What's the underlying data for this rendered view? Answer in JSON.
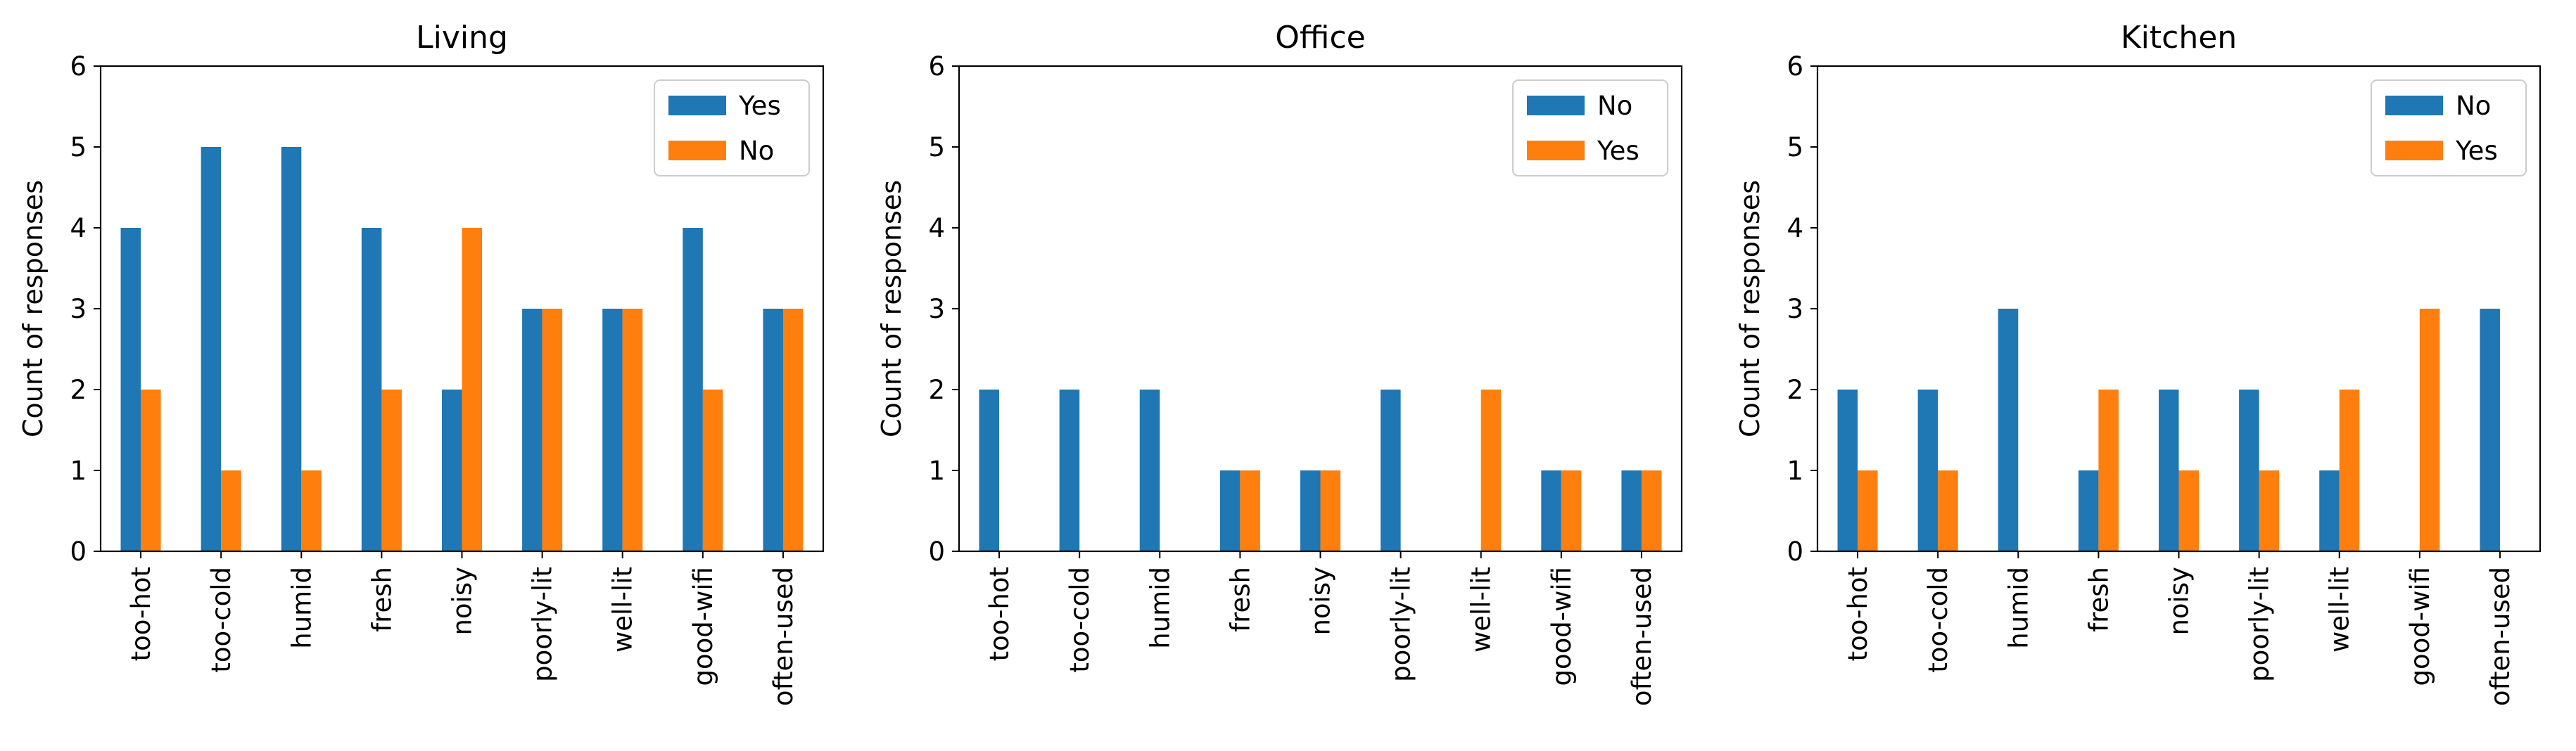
{
  "colors": {
    "blue": "#1f77b4",
    "orange": "#ff7f0e"
  },
  "chart_data": [
    {
      "type": "bar",
      "title": "Living",
      "ylabel": "Count of responses",
      "xlabel": "",
      "ylim": [
        0,
        6
      ],
      "yticks": [
        "0",
        "1",
        "2",
        "3",
        "4",
        "5",
        "6"
      ],
      "grid": false,
      "legend_position": "top-right",
      "categories": [
        "too-hot",
        "too-cold",
        "humid",
        "fresh",
        "noisy",
        "poorly-lit",
        "well-lit",
        "good-wifi",
        "often-used"
      ],
      "series": [
        {
          "name": "Yes",
          "color": "#1f77b4",
          "values": [
            4,
            5,
            5,
            4,
            2,
            3,
            3,
            4,
            3
          ]
        },
        {
          "name": "No",
          "color": "#ff7f0e",
          "values": [
            2,
            1,
            1,
            2,
            4,
            3,
            3,
            2,
            3
          ]
        }
      ]
    },
    {
      "type": "bar",
      "title": "Office",
      "ylabel": "Count of responses",
      "xlabel": "",
      "ylim": [
        0,
        6
      ],
      "yticks": [
        "0",
        "1",
        "2",
        "3",
        "4",
        "5",
        "6"
      ],
      "grid": false,
      "legend_position": "top-right",
      "categories": [
        "too-hot",
        "too-cold",
        "humid",
        "fresh",
        "noisy",
        "poorly-lit",
        "well-lit",
        "good-wifi",
        "often-used"
      ],
      "series": [
        {
          "name": "No",
          "color": "#1f77b4",
          "values": [
            2,
            2,
            2,
            1,
            1,
            2,
            0,
            1,
            1
          ]
        },
        {
          "name": "Yes",
          "color": "#ff7f0e",
          "values": [
            0,
            0,
            0,
            1,
            1,
            0,
            2,
            1,
            1
          ]
        }
      ]
    },
    {
      "type": "bar",
      "title": "Kitchen",
      "ylabel": "Count of responses",
      "xlabel": "",
      "ylim": [
        0,
        6
      ],
      "yticks": [
        "0",
        "1",
        "2",
        "3",
        "4",
        "5",
        "6"
      ],
      "grid": false,
      "legend_position": "top-right",
      "categories": [
        "too-hot",
        "too-cold",
        "humid",
        "fresh",
        "noisy",
        "poorly-lit",
        "well-lit",
        "good-wifi",
        "often-used"
      ],
      "series": [
        {
          "name": "No",
          "color": "#1f77b4",
          "values": [
            2,
            2,
            3,
            1,
            2,
            2,
            1,
            0,
            3
          ]
        },
        {
          "name": "Yes",
          "color": "#ff7f0e",
          "values": [
            1,
            1,
            0,
            2,
            1,
            1,
            2,
            3,
            0
          ]
        }
      ]
    }
  ]
}
